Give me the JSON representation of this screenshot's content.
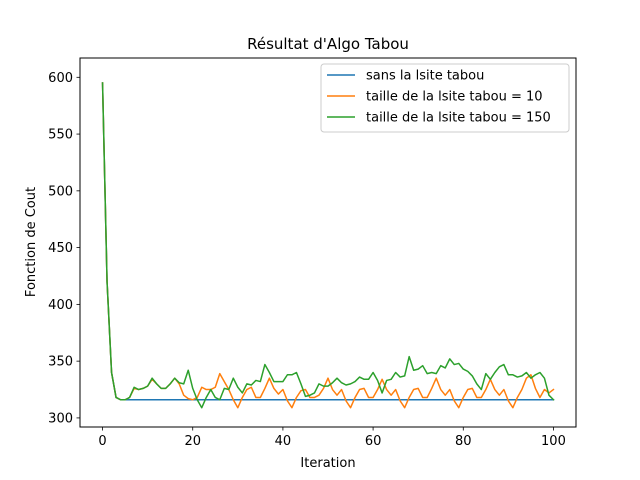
{
  "chart_data": {
    "type": "line",
    "title": "Résultat d'Algo Tabou",
    "xlabel": "Iteration",
    "ylabel": "Fonction de Cout",
    "xlim": [
      -5,
      105
    ],
    "ylim": [
      292,
      617
    ],
    "xticks": [
      0,
      20,
      40,
      60,
      80,
      100
    ],
    "yticks": [
      300,
      350,
      400,
      450,
      500,
      550,
      600
    ],
    "grid": false,
    "legend": "top-right",
    "series": [
      {
        "name": "sans la lsite tabou",
        "color": "#1f77b4",
        "x": [
          0,
          1,
          2,
          3,
          4,
          5,
          6,
          7,
          8,
          9,
          10,
          11,
          12,
          13,
          14,
          15,
          16,
          17,
          18,
          19,
          20,
          21,
          22,
          23,
          24,
          25,
          26,
          27,
          28,
          29,
          30,
          31,
          32,
          33,
          34,
          35,
          36,
          37,
          38,
          39,
          40,
          41,
          42,
          43,
          44,
          45,
          46,
          47,
          48,
          49,
          50,
          51,
          52,
          53,
          54,
          55,
          56,
          57,
          58,
          59,
          60,
          61,
          62,
          63,
          64,
          65,
          66,
          67,
          68,
          69,
          70,
          71,
          72,
          73,
          74,
          75,
          76,
          77,
          78,
          79,
          80,
          81,
          82,
          83,
          84,
          85,
          86,
          87,
          88,
          89,
          90,
          91,
          92,
          93,
          94,
          95,
          96,
          97,
          98,
          99,
          100
        ],
        "y": [
          595,
          420,
          340,
          318,
          316,
          316,
          316,
          316,
          316,
          316,
          316,
          316,
          316,
          316,
          316,
          316,
          316,
          316,
          316,
          316,
          316,
          316,
          316,
          316,
          316,
          316,
          316,
          316,
          316,
          316,
          316,
          316,
          316,
          316,
          316,
          316,
          316,
          316,
          316,
          316,
          316,
          316,
          316,
          316,
          316,
          316,
          316,
          316,
          316,
          316,
          316,
          316,
          316,
          316,
          316,
          316,
          316,
          316,
          316,
          316,
          316,
          316,
          316,
          316,
          316,
          316,
          316,
          316,
          316,
          316,
          316,
          316,
          316,
          316,
          316,
          316,
          316,
          316,
          316,
          316,
          316,
          316,
          316,
          316,
          316,
          316,
          316,
          316,
          316,
          316,
          316,
          316,
          316,
          316,
          316,
          316,
          316,
          316,
          316,
          316,
          316
        ]
      },
      {
        "name": "taille de la lsite tabou = 10",
        "color": "#ff7f0e",
        "x": [
          0,
          1,
          2,
          3,
          4,
          5,
          6,
          7,
          8,
          9,
          10,
          11,
          12,
          13,
          14,
          15,
          16,
          17,
          18,
          19,
          20,
          21,
          22,
          23,
          24,
          25,
          26,
          27,
          28,
          29,
          30,
          31,
          32,
          33,
          34,
          35,
          36,
          37,
          38,
          39,
          40,
          41,
          42,
          43,
          44,
          45,
          46,
          47,
          48,
          49,
          50,
          51,
          52,
          53,
          54,
          55,
          56,
          57,
          58,
          59,
          60,
          61,
          62,
          63,
          64,
          65,
          66,
          67,
          68,
          69,
          70,
          71,
          72,
          73,
          74,
          75,
          76,
          77,
          78,
          79,
          80,
          81,
          82,
          83,
          84,
          85,
          86,
          87,
          88,
          89,
          90,
          91,
          92,
          93,
          94,
          95,
          96,
          97,
          98,
          99,
          100
        ],
        "y": [
          595,
          420,
          340,
          318,
          316,
          316,
          318,
          326,
          325,
          326,
          328,
          334,
          330,
          326,
          326,
          330,
          335,
          330,
          320,
          317,
          316,
          318,
          327,
          325,
          325,
          327,
          339,
          332,
          325,
          316,
          309,
          318,
          325,
          327,
          318,
          318,
          326,
          335,
          326,
          321,
          325,
          315,
          309,
          318,
          324,
          325,
          318,
          318,
          320,
          326,
          335,
          325,
          320,
          325,
          315,
          309,
          318,
          325,
          326,
          318,
          318,
          325,
          334,
          325,
          320,
          325,
          315,
          309,
          318,
          325,
          326,
          318,
          318,
          326,
          335,
          325,
          320,
          325,
          315,
          309,
          318,
          325,
          326,
          318,
          318,
          325,
          334,
          325,
          320,
          325,
          315,
          309,
          318,
          325,
          335,
          338,
          326,
          318,
          325,
          322,
          325
        ]
      },
      {
        "name": "taille de la lsite tabou = 150",
        "color": "#2ca02c",
        "x": [
          0,
          1,
          2,
          3,
          4,
          5,
          6,
          7,
          8,
          9,
          10,
          11,
          12,
          13,
          14,
          15,
          16,
          17,
          18,
          19,
          20,
          21,
          22,
          23,
          24,
          25,
          26,
          27,
          28,
          29,
          30,
          31,
          32,
          33,
          34,
          35,
          36,
          37,
          38,
          39,
          40,
          41,
          42,
          43,
          44,
          45,
          46,
          47,
          48,
          49,
          50,
          51,
          52,
          53,
          54,
          55,
          56,
          57,
          58,
          59,
          60,
          61,
          62,
          63,
          64,
          65,
          66,
          67,
          68,
          69,
          70,
          71,
          72,
          73,
          74,
          75,
          76,
          77,
          78,
          79,
          80,
          81,
          82,
          83,
          84,
          85,
          86,
          87,
          88,
          89,
          90,
          91,
          92,
          93,
          94,
          95,
          96,
          97,
          98,
          99,
          100
        ],
        "y": [
          595,
          420,
          340,
          318,
          316,
          316,
          318,
          327,
          325,
          326,
          328,
          335,
          330,
          326,
          326,
          330,
          335,
          331,
          330,
          342,
          326,
          316,
          309,
          318,
          325,
          318,
          316,
          326,
          325,
          335,
          327,
          322,
          330,
          329,
          333,
          332,
          347,
          340,
          332,
          332,
          332,
          338,
          338,
          340,
          330,
          319,
          320,
          322,
          330,
          328,
          328,
          331,
          335,
          331,
          329,
          330,
          332,
          336,
          334,
          334,
          340,
          333,
          322,
          333,
          334,
          340,
          336,
          337,
          354,
          342,
          343,
          346,
          339,
          340,
          339,
          346,
          344,
          352,
          347,
          348,
          343,
          341,
          337,
          330,
          325,
          339,
          334,
          340,
          345,
          347,
          338,
          338,
          336,
          337,
          340,
          335,
          338,
          340,
          335,
          320,
          316
        ]
      }
    ]
  }
}
